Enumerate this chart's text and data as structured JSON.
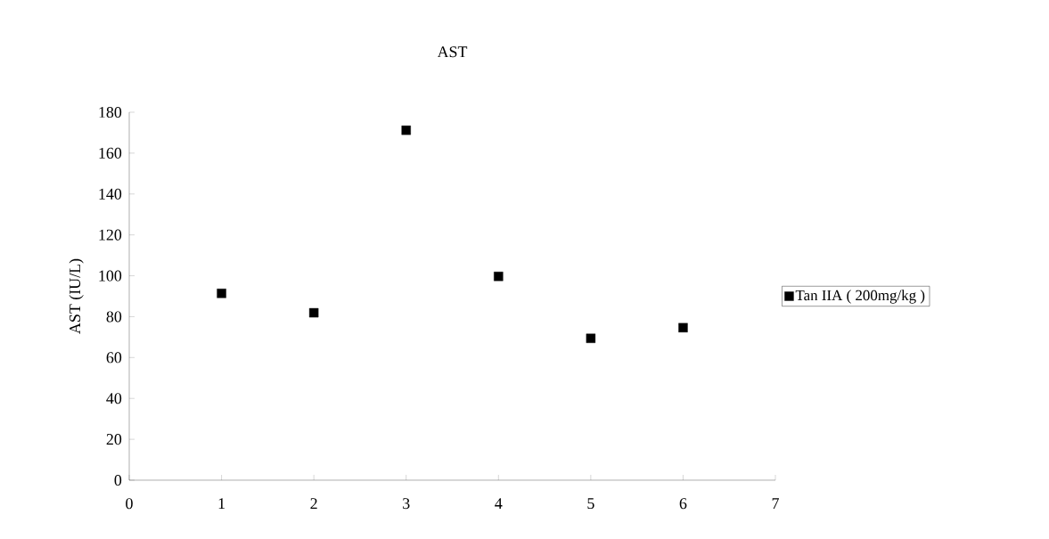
{
  "chart_data": {
    "type": "scatter",
    "title": "AST",
    "ylabel": "AST (IU/L)",
    "x": [
      1,
      2,
      3,
      4,
      5,
      6
    ],
    "series": [
      {
        "name": "Tan IIA ( 200mg/kg )",
        "color": "#000000",
        "values": [
          91.4,
          81.9,
          171.2,
          99.7,
          69.4,
          74.6
        ]
      }
    ],
    "xlim": [
      0,
      7
    ],
    "xticks": [
      0,
      1,
      2,
      3,
      4,
      5,
      6,
      7
    ],
    "ylim": [
      0,
      180
    ],
    "yticks": [
      0,
      20,
      40,
      60,
      80,
      100,
      120,
      140,
      160,
      180
    ],
    "marker": "square",
    "legend": "right",
    "grid": false
  }
}
